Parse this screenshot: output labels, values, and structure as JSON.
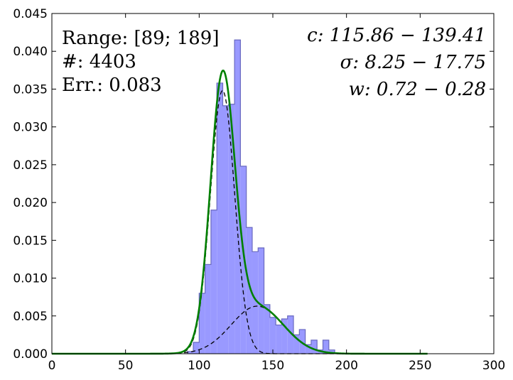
{
  "chart_data": {
    "type": "bar",
    "title": "",
    "xlabel": "",
    "ylabel": "",
    "xlim": [
      0,
      300
    ],
    "ylim": [
      0,
      0.045
    ],
    "grid": false,
    "xticks": [
      "0",
      "50",
      "100",
      "150",
      "200",
      "250",
      "300"
    ],
    "yticks": [
      "0.000",
      "0.005",
      "0.010",
      "0.015",
      "0.020",
      "0.025",
      "0.030",
      "0.035",
      "0.040",
      "0.045"
    ],
    "bin_width": 4,
    "bins": [
      {
        "x": 94,
        "y": 0.0003
      },
      {
        "x": 98,
        "y": 0.0015
      },
      {
        "x": 102,
        "y": 0.008
      },
      {
        "x": 106,
        "y": 0.0118
      },
      {
        "x": 110,
        "y": 0.019
      },
      {
        "x": 114,
        "y": 0.0358
      },
      {
        "x": 118,
        "y": 0.0328
      },
      {
        "x": 122,
        "y": 0.033
      },
      {
        "x": 126,
        "y": 0.0415
      },
      {
        "x": 130,
        "y": 0.0248
      },
      {
        "x": 134,
        "y": 0.0167
      },
      {
        "x": 138,
        "y": 0.0135
      },
      {
        "x": 142,
        "y": 0.014
      },
      {
        "x": 146,
        "y": 0.0065
      },
      {
        "x": 150,
        "y": 0.0048
      },
      {
        "x": 154,
        "y": 0.0038
      },
      {
        "x": 158,
        "y": 0.0046
      },
      {
        "x": 162,
        "y": 0.005
      },
      {
        "x": 166,
        "y": 0.0025
      },
      {
        "x": 170,
        "y": 0.0032
      },
      {
        "x": 174,
        "y": 0.0012
      },
      {
        "x": 178,
        "y": 0.0018
      },
      {
        "x": 182,
        "y": 0.0005
      },
      {
        "x": 186,
        "y": 0.0018
      },
      {
        "x": 190,
        "y": 0.0005
      }
    ],
    "series": [
      {
        "type": "histogram",
        "color": "#9999ff"
      },
      {
        "type": "line",
        "color": "#008000",
        "kind": "two-gaussian fit",
        "components": [
          {
            "center": 115.86,
            "sigma": 8.25,
            "weight": 0.72
          },
          {
            "center": 139.41,
            "sigma": 17.75,
            "weight": 0.28
          }
        ]
      },
      {
        "type": "line",
        "color": "#000000",
        "style": "dashed",
        "component": 1
      },
      {
        "type": "line",
        "color": "#000000",
        "style": "dashed",
        "component": 2
      }
    ],
    "annotations_left": [
      "Range: [89; 189]",
      "#: 4403",
      "Err.: 0.083"
    ],
    "annotations_right": [
      "c: 115.86 − 139.41",
      "σ: 8.25 − 17.75",
      "w: 0.72 − 0.28"
    ]
  }
}
